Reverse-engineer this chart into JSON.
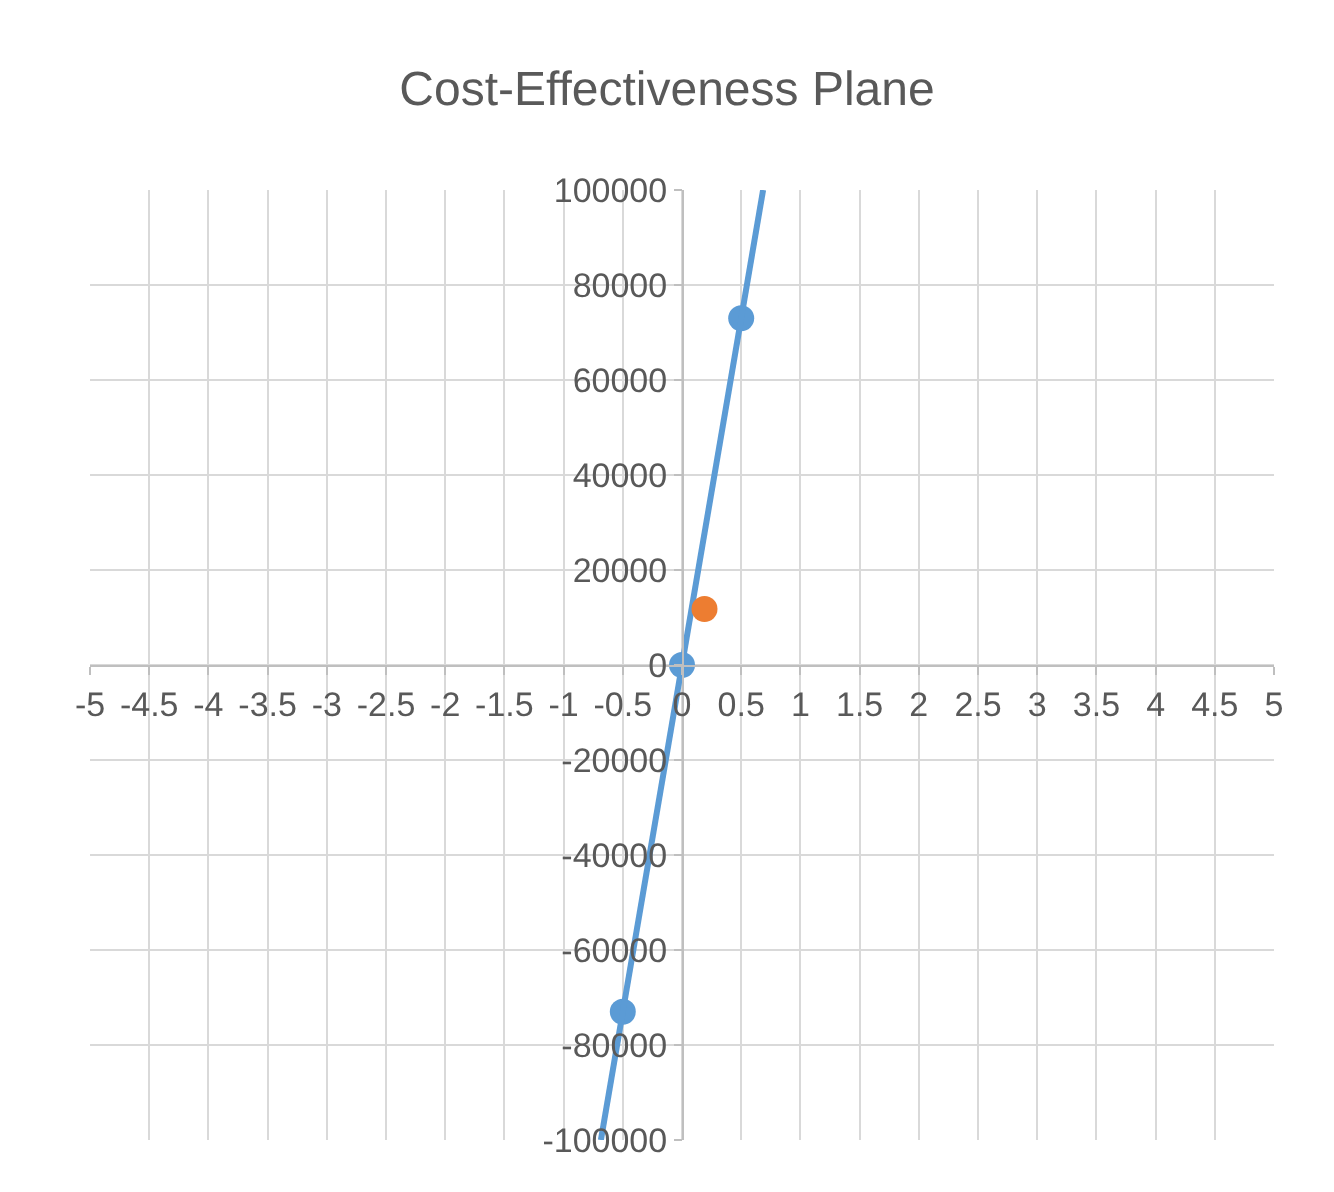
{
  "chart_data": {
    "type": "scatter",
    "title": "Cost-Effectiveness Plane",
    "series": [
      {
        "color": "#5b9bd5",
        "x": [
          -0.5,
          0,
          0.5
        ],
        "values": [
          -73000,
          0,
          73000
        ],
        "marker": "circle"
      },
      {
        "type": "line",
        "color": "#5b9bd5",
        "x": [
          -0.685,
          0.685
        ],
        "values": [
          -100000,
          100000
        ],
        "marker": "none"
      },
      {
        "color": "#ed7d31",
        "x": [
          0.19
        ],
        "values": [
          11800
        ],
        "marker": "circle"
      }
    ],
    "xlim": [
      -5,
      5
    ],
    "xticks": [
      -5,
      -4.5,
      -4,
      -3.5,
      -3,
      -2.5,
      -2,
      -1.5,
      -1,
      -0.5,
      0,
      0.5,
      1,
      1.5,
      2,
      2.5,
      3,
      3.5,
      4,
      4.5,
      5
    ],
    "ylim": [
      -100000,
      100000
    ],
    "yticks": [
      -100000,
      -80000,
      -60000,
      -40000,
      -20000,
      0,
      20000,
      40000,
      60000,
      80000,
      100000
    ],
    "grid": true
  }
}
